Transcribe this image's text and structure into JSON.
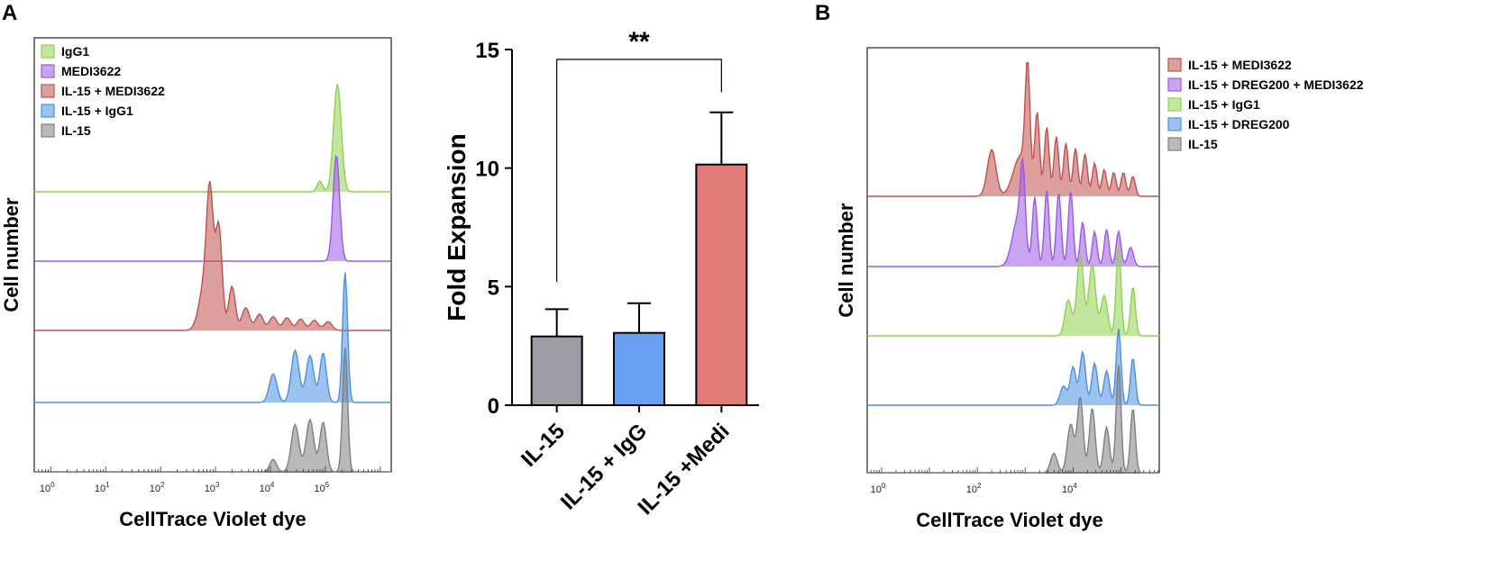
{
  "colors": {
    "green": "#8fd14f",
    "purple": "#9b59e6",
    "red": "#c0504d",
    "blue": "#4a90e2",
    "gray": "#7f7f7f",
    "bar_gray": "#9d9ca3",
    "bar_blue": "#6a9ef0",
    "bar_red": "#e07a78"
  },
  "chart_data": [
    {
      "id": "A-left",
      "type": "area",
      "panel_label": "A",
      "xlabel": "CellTrace Violet dye",
      "ylabel": "Cell number",
      "xscale": "log",
      "xlim_log10": [
        -0.3,
        6.2
      ],
      "x_tick_labels": [
        {
          "log": 0,
          "base": "10",
          "exp": "0"
        },
        {
          "log": 1,
          "base": "10",
          "exp": "1"
        },
        {
          "log": 2,
          "base": "10",
          "exp": "2"
        },
        {
          "log": 3,
          "base": "10",
          "exp": "3"
        },
        {
          "log": 4,
          "base": "10",
          "exp": "4"
        },
        {
          "log": 5,
          "base": "10",
          "exp": "5"
        }
      ],
      "legend": [
        "IgG1",
        "MEDI3622",
        "IL-15 + MEDI3622",
        "IL-15 + IgG1",
        "IL-15"
      ],
      "legend_position": "top-left",
      "series": [
        {
          "name": "IgG1",
          "color": "green",
          "peaks": [
            [
              4.9,
              0.1,
              0.05
            ],
            [
              5.22,
              1.0,
              0.07
            ]
          ]
        },
        {
          "name": "MEDI3622",
          "color": "purple",
          "peaks": [
            [
              5.2,
              1.0,
              0.06
            ]
          ]
        },
        {
          "name": "IL-15 + MEDI3622",
          "color": "red",
          "peaks": [
            [
              2.8,
              0.35,
              0.1
            ],
            [
              2.9,
              0.95,
              0.06
            ],
            [
              3.06,
              0.82,
              0.06
            ],
            [
              3.3,
              0.35,
              0.06
            ],
            [
              3.55,
              0.18,
              0.07
            ],
            [
              3.8,
              0.13,
              0.07
            ],
            [
              4.05,
              0.11,
              0.07
            ],
            [
              4.3,
              0.1,
              0.07
            ],
            [
              4.55,
              0.09,
              0.07
            ],
            [
              4.8,
              0.08,
              0.07
            ],
            [
              5.05,
              0.07,
              0.07
            ]
          ]
        },
        {
          "name": "IL-15 + IgG1",
          "color": "blue",
          "peaks": [
            [
              4.05,
              0.22,
              0.07
            ],
            [
              4.45,
              0.4,
              0.07
            ],
            [
              4.72,
              0.36,
              0.07
            ],
            [
              4.96,
              0.38,
              0.06
            ],
            [
              5.36,
              1.0,
              0.045
            ]
          ]
        },
        {
          "name": "IL-15",
          "color": "gray",
          "peaks": [
            [
              4.05,
              0.1,
              0.06
            ],
            [
              4.45,
              0.38,
              0.07
            ],
            [
              4.72,
              0.42,
              0.07
            ],
            [
              4.96,
              0.4,
              0.06
            ],
            [
              5.36,
              1.0,
              0.045
            ]
          ]
        }
      ]
    },
    {
      "id": "A-right",
      "type": "bar",
      "ylabel": "Fold Expansion",
      "ylim": [
        0,
        15
      ],
      "y_ticks": [
        0,
        5,
        10,
        15
      ],
      "categories": [
        "IL-15",
        "IL-15 + IgG",
        "IL-15 +Medi"
      ],
      "values": [
        2.9,
        3.05,
        10.15
      ],
      "errors": [
        1.15,
        1.25,
        2.2
      ],
      "bar_colors": [
        "bar_gray",
        "bar_blue",
        "bar_red"
      ],
      "significance": {
        "from": 0,
        "to": 2,
        "label": "**"
      }
    },
    {
      "id": "B",
      "type": "area",
      "panel_label": "B",
      "xlabel": "CellTrace Violet dye",
      "ylabel": "Cell number",
      "xscale": "log",
      "xlim_log10": [
        -0.3,
        5.8
      ],
      "x_tick_labels": [
        {
          "log": 0,
          "base": "10",
          "exp": "0"
        },
        {
          "log": 2,
          "base": "10",
          "exp": "2"
        },
        {
          "log": 4,
          "base": "10",
          "exp": "4"
        }
      ],
      "legend": [
        "IL-15 + MEDI3622",
        "IL-15 + DREG200 + MEDI3622",
        "IL-15 + IgG1",
        "IL-15 + DREG200",
        "IL-15"
      ],
      "legend_position": "outside-right",
      "series": [
        {
          "name": "IL-15 + MEDI3622",
          "color": "red",
          "peaks": [
            [
              2.3,
              0.35,
              0.09
            ],
            [
              2.9,
              0.3,
              0.15
            ],
            [
              3.05,
              0.85,
              0.05
            ],
            [
              3.25,
              0.62,
              0.05
            ],
            [
              3.45,
              0.52,
              0.05
            ],
            [
              3.65,
              0.45,
              0.05
            ],
            [
              3.85,
              0.4,
              0.05
            ],
            [
              4.05,
              0.36,
              0.05
            ],
            [
              4.25,
              0.32,
              0.05
            ],
            [
              4.45,
              0.25,
              0.05
            ],
            [
              4.65,
              0.2,
              0.05
            ],
            [
              4.85,
              0.18,
              0.05
            ],
            [
              5.05,
              0.18,
              0.05
            ],
            [
              5.25,
              0.15,
              0.05
            ]
          ]
        },
        {
          "name": "IL-15 + DREG200 + MEDI3622",
          "color": "purple",
          "peaks": [
            [
              2.85,
              0.45,
              0.12
            ],
            [
              2.95,
              0.7,
              0.05
            ],
            [
              3.2,
              0.65,
              0.05
            ],
            [
              3.45,
              0.72,
              0.05
            ],
            [
              3.7,
              0.7,
              0.05
            ],
            [
              3.95,
              0.72,
              0.05
            ],
            [
              4.2,
              0.42,
              0.05
            ],
            [
              4.45,
              0.33,
              0.05
            ],
            [
              4.7,
              0.35,
              0.05
            ],
            [
              4.95,
              0.33,
              0.05
            ],
            [
              5.2,
              0.18,
              0.06
            ]
          ]
        },
        {
          "name": "IL-15 + IgG1",
          "color": "green",
          "peaks": [
            [
              3.9,
              0.4,
              0.07
            ],
            [
              4.15,
              0.9,
              0.07
            ],
            [
              4.4,
              0.8,
              0.07
            ],
            [
              4.65,
              0.45,
              0.07
            ],
            [
              4.95,
              1.0,
              0.05
            ],
            [
              5.25,
              0.55,
              0.05
            ]
          ]
        },
        {
          "name": "IL-15 + DREG200",
          "color": "blue",
          "peaks": [
            [
              3.8,
              0.25,
              0.07
            ],
            [
              4.0,
              0.5,
              0.06
            ],
            [
              4.2,
              0.7,
              0.06
            ],
            [
              4.45,
              0.55,
              0.06
            ],
            [
              4.7,
              0.45,
              0.06
            ],
            [
              4.95,
              1.0,
              0.05
            ],
            [
              5.25,
              0.62,
              0.05
            ]
          ]
        },
        {
          "name": "IL-15",
          "color": "gray",
          "peaks": [
            [
              3.6,
              0.18,
              0.07
            ],
            [
              3.95,
              0.45,
              0.07
            ],
            [
              4.15,
              0.7,
              0.06
            ],
            [
              4.4,
              0.6,
              0.06
            ],
            [
              4.7,
              0.42,
              0.06
            ],
            [
              4.95,
              1.0,
              0.05
            ],
            [
              5.25,
              0.6,
              0.05
            ]
          ]
        }
      ]
    }
  ]
}
